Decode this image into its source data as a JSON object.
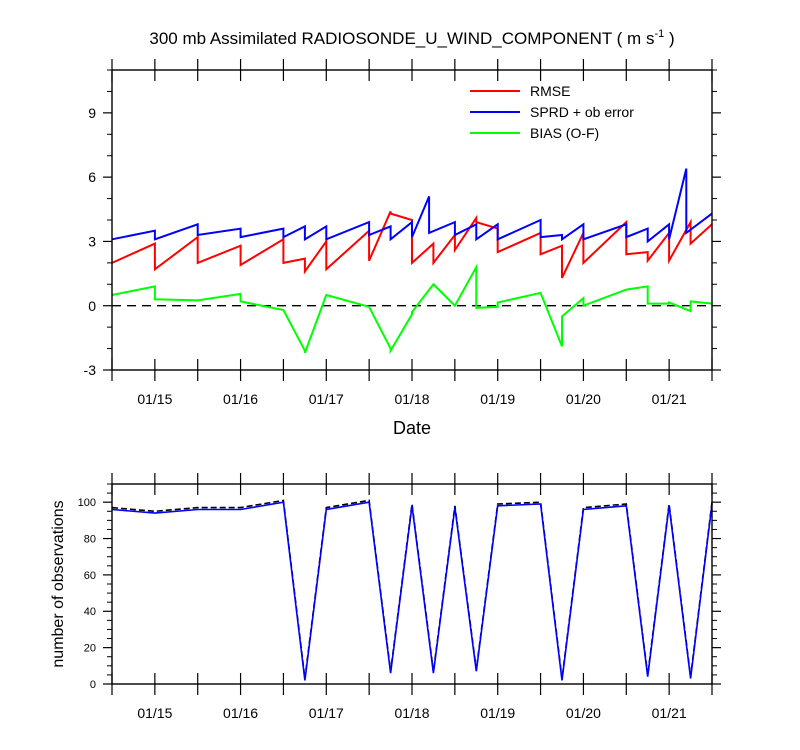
{
  "chart_data": [
    {
      "type": "line",
      "title": "300 mb Assimilated RADIOSONDE_U_WIND_COMPONENT",
      "title_units": "( m s",
      "title_units_sup": "-1",
      "title_units_close": " )",
      "xlabel": "Date",
      "ylabel": "",
      "xlim": [
        14.5,
        21.5
      ],
      "ylim": [
        -3,
        11
      ],
      "yticks": [
        -3,
        0,
        3,
        6,
        9
      ],
      "xticks": [
        15,
        16,
        17,
        18,
        19,
        20,
        21
      ],
      "xtick_labels": [
        "01/15",
        "01/16",
        "01/17",
        "01/18",
        "01/19",
        "01/20",
        "01/21"
      ],
      "zero_line": true,
      "legend": [
        "RMSE",
        "SPRD + ob error",
        "BIAS (O-F)"
      ],
      "series": [
        {
          "name": "RMSE",
          "color": "#ff0000",
          "x": [
            14.5,
            15.0,
            15.0,
            15.5,
            15.5,
            16.0,
            16.0,
            16.5,
            16.5,
            16.75,
            16.75,
            17.0,
            17.0,
            17.5,
            17.5,
            17.75,
            17.75,
            18.0,
            18.0,
            18.25,
            18.25,
            18.5,
            18.5,
            18.75,
            18.75,
            19.0,
            19.0,
            19.5,
            19.5,
            19.75,
            19.75,
            20.0,
            20.0,
            20.5,
            20.5,
            20.75,
            20.75,
            21.0,
            21.0,
            21.25,
            21.25,
            21.5
          ],
          "y": [
            2.0,
            2.9,
            1.7,
            3.2,
            2.0,
            2.8,
            1.9,
            3.1,
            2.0,
            2.2,
            1.6,
            3.0,
            1.7,
            3.5,
            2.1,
            4.4,
            4.3,
            4.0,
            2.0,
            2.9,
            2.0,
            3.3,
            2.6,
            4.1,
            3.9,
            3.6,
            2.5,
            3.4,
            2.4,
            2.8,
            1.3,
            3.4,
            2.0,
            3.9,
            2.4,
            2.5,
            2.1,
            3.4,
            2.1,
            3.9,
            2.9,
            3.8
          ]
        },
        {
          "name": "SPRD + ob error",
          "color": "#0000ff",
          "x": [
            14.5,
            15.0,
            15.0,
            15.5,
            15.5,
            16.0,
            16.0,
            16.5,
            16.5,
            16.75,
            16.75,
            17.0,
            17.0,
            17.5,
            17.5,
            17.75,
            17.75,
            18.0,
            18.0,
            18.2,
            18.2,
            18.5,
            18.5,
            18.75,
            18.75,
            19.0,
            19.0,
            19.5,
            19.5,
            19.75,
            19.75,
            20.0,
            20.0,
            20.5,
            20.5,
            20.75,
            20.75,
            21.0,
            21.0,
            21.2,
            21.2,
            21.5
          ],
          "y": [
            3.1,
            3.5,
            3.1,
            3.8,
            3.3,
            3.6,
            3.2,
            3.6,
            3.2,
            3.7,
            3.1,
            3.7,
            3.1,
            3.9,
            3.3,
            3.7,
            3.1,
            3.9,
            3.2,
            5.1,
            3.4,
            3.9,
            3.3,
            3.8,
            3.1,
            3.8,
            3.1,
            4.0,
            3.2,
            3.3,
            3.1,
            3.8,
            3.1,
            3.8,
            3.2,
            3.6,
            3.0,
            3.8,
            3.1,
            6.4,
            3.4,
            4.3
          ]
        },
        {
          "name": "BIAS (O-F)",
          "color": "#00ff00",
          "x": [
            14.5,
            15.0,
            15.0,
            15.5,
            16.0,
            16.0,
            16.5,
            16.75,
            16.75,
            17.0,
            17.5,
            17.75,
            17.75,
            18.0,
            18.0,
            18.25,
            18.5,
            18.75,
            18.75,
            19.0,
            19.0,
            19.5,
            19.75,
            19.75,
            20.0,
            20.0,
            20.5,
            20.75,
            20.75,
            21.0,
            21.0,
            21.25,
            21.25,
            21.5
          ],
          "y": [
            0.5,
            0.9,
            0.3,
            0.25,
            0.55,
            0.2,
            -0.2,
            -2.1,
            -2.2,
            0.5,
            -0.05,
            -2.0,
            -2.1,
            -0.4,
            -0.3,
            1.0,
            0.0,
            1.8,
            -0.1,
            -0.05,
            0.15,
            0.6,
            -1.9,
            -0.5,
            0.35,
            0.0,
            0.75,
            0.9,
            0.1,
            0.1,
            0.15,
            -0.25,
            0.2,
            0.1
          ]
        }
      ]
    },
    {
      "type": "line",
      "title": "",
      "xlabel": "",
      "ylabel": "number of observations",
      "xlim": [
        14.5,
        21.5
      ],
      "ylim": [
        0,
        110
      ],
      "yticks": [
        0,
        20,
        40,
        60,
        80,
        100
      ],
      "xticks": [
        15,
        16,
        17,
        18,
        19,
        20,
        21
      ],
      "xtick_labels": [
        "01/15",
        "01/16",
        "01/17",
        "01/18",
        "01/19",
        "01/20",
        "01/21"
      ],
      "series": [
        {
          "name": "observations (dashed)",
          "color": "#000000",
          "style": "dashed",
          "x": [
            14.5,
            15.0,
            15.5,
            16.0,
            16.5,
            16.75,
            17.0,
            17.5,
            17.75,
            18.0,
            18.25,
            18.5,
            18.75,
            19.0,
            19.5,
            19.75,
            20.0,
            20.5,
            20.75,
            21.0,
            21.25,
            21.5
          ],
          "y": [
            97,
            95,
            97,
            97,
            101,
            3,
            97,
            101,
            7,
            99,
            7,
            98,
            8,
            99,
            100,
            3,
            97,
            99,
            5,
            99,
            4,
            100
          ]
        },
        {
          "name": "observations",
          "color": "#0000ff",
          "style": "solid",
          "x": [
            14.5,
            15.0,
            15.5,
            16.0,
            16.5,
            16.75,
            17.0,
            17.5,
            17.75,
            18.0,
            18.25,
            18.5,
            18.75,
            19.0,
            19.5,
            19.75,
            20.0,
            20.5,
            20.75,
            21.0,
            21.25,
            21.5
          ],
          "y": [
            96,
            94,
            96,
            96,
            100,
            2,
            96,
            100,
            6,
            98,
            6,
            97,
            7,
            98,
            99,
            2,
            96,
            98,
            4,
            98,
            3,
            99
          ]
        }
      ]
    }
  ]
}
